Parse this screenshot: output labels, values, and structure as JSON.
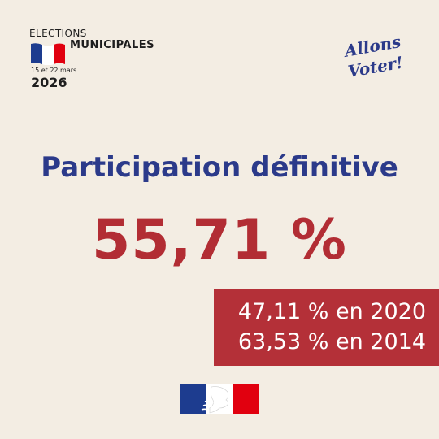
{
  "logo": {
    "elections": "ÉLECTIONS",
    "municipales": "MUNICIPALES",
    "dates": "15 et 22 mars",
    "year": "2026",
    "flag_colors": [
      "#1d3c8f",
      "#ffffff",
      "#e1000f"
    ]
  },
  "slogan": {
    "line1": "Allons",
    "line2": "Voter!",
    "color": "#2b3a8a"
  },
  "main": {
    "title": "Participation définitive",
    "value": "55,71 %"
  },
  "comparison": {
    "line1": "47,11 % en 2020",
    "line2": "63,53 % en 2014"
  },
  "colors": {
    "background": "#f3ede3",
    "title": "#2b3a8a",
    "accent_red": "#b22d34"
  },
  "emblem": {
    "icon": "marianne-logo-icon"
  }
}
